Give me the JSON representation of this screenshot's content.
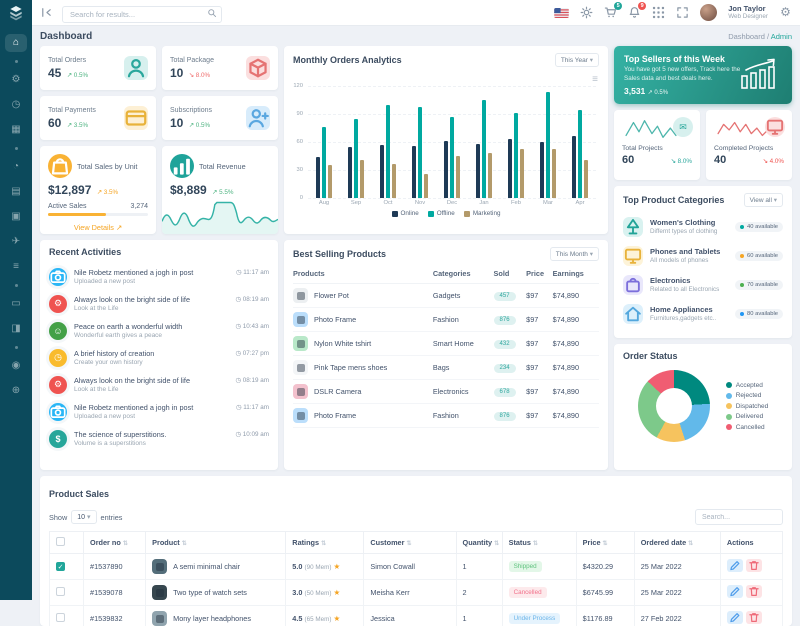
{
  "navbar": {
    "search_placeholder": "Search for results...",
    "cart_badge": "5",
    "bell_badge": "9",
    "user_name": "Jon Taylor",
    "user_role": "Web Designer"
  },
  "header": {
    "title": "Dashboard",
    "breadcrumb": {
      "main": "Dashboard",
      "sub": "Admin"
    }
  },
  "sidebar": {
    "items": [
      "home",
      "divider",
      "settings",
      "clock",
      "apps",
      "divider",
      "history",
      "gallery",
      "components",
      "send",
      "tables",
      "divider",
      "documents",
      "widgets",
      "divider",
      "location",
      "globe"
    ]
  },
  "stats": [
    {
      "label": "Total Orders",
      "value": "45",
      "delta": "0.5%",
      "dir": "up",
      "icon": "person",
      "icon_bg": "#d7f0ee",
      "icon_color": "#2aa79c"
    },
    {
      "label": "Total Package",
      "value": "10",
      "delta": "8.0%",
      "dir": "down",
      "icon": "box",
      "icon_bg": "#fbdfdf",
      "icon_color": "#e57373"
    },
    {
      "label": "Total Payments",
      "value": "60",
      "delta": "3.5%",
      "dir": "up",
      "icon": "card",
      "icon_bg": "#fdf0d5",
      "icon_color": "#e8b23a"
    },
    {
      "label": "Subscriptions",
      "value": "10",
      "delta": "0.5%",
      "dir": "up",
      "icon": "person-plus",
      "icon_bg": "#d8ecfb",
      "icon_color": "#5aa7e0"
    }
  ],
  "sales_unit": {
    "title": "Total Sales by Unit",
    "value": "$12,897",
    "delta": "3.5%",
    "active_label": "Active Sales",
    "active_value": "3,274",
    "link": "View Details ↗"
  },
  "revenue": {
    "title": "Total Revenue",
    "value": "$8,889",
    "delta": "5.5%"
  },
  "top_sellers": {
    "title": "Top Sellers of this Week",
    "desc": "You have got 5 new offers, Track here the Sales data and best deals here.",
    "value": "3,531",
    "delta": "0.5%"
  },
  "projects": [
    {
      "label": "Total Projects",
      "value": "60",
      "delta": "8.0%",
      "delta_color": "#2aa79c",
      "icon": "envelope",
      "icon_bg": "#d7f0ee",
      "icon_color": "#2aa79c",
      "line_color": "#4db6ac"
    },
    {
      "label": "Completed Projects",
      "value": "40",
      "delta": "4.0%",
      "delta_color": "#ef5350",
      "icon": "monitor",
      "icon_bg": "#fbdfdf",
      "icon_color": "#e57373",
      "line_color": "#e57373"
    }
  ],
  "categories": {
    "title": "Top Product Categories",
    "dropdown": "View all",
    "items": [
      {
        "name": "Women's Clothing",
        "desc": "Differnt types of clothing",
        "count": "40 available",
        "dot": "#00a9a0",
        "icon": "clothing",
        "icon_bg": "#d9f2f0",
        "icon_color": "#22a498"
      },
      {
        "name": "Phones and Tablets",
        "desc": "All models of phones",
        "count": "60 available",
        "dot": "#f5a524",
        "icon": "monitor",
        "icon_bg": "#fdf3d8",
        "icon_color": "#e8b23a"
      },
      {
        "name": "Electronics",
        "desc": "Related to all Electronics",
        "count": "70 available",
        "dot": "#4caf50",
        "icon": "bag",
        "icon_bg": "#e9e7fb",
        "icon_color": "#7c6fdb"
      },
      {
        "name": "Home Appliances",
        "desc": "Furnitures,gadgets etc..",
        "count": "80 available",
        "dot": "#2196f3",
        "icon": "home",
        "icon_bg": "#ddf0fb",
        "icon_color": "#53a7dd"
      }
    ]
  },
  "activities": {
    "title": "Recent Activities",
    "items": [
      {
        "title": "Nile Robetz mentioned a jogh in post",
        "sub": "Uploaded a new post",
        "time": "11:17 am",
        "color": "#29b6f6",
        "icon": "camera"
      },
      {
        "title": "Always look on the bright side of life",
        "sub": "Look at the Life",
        "time": "08:19 am",
        "color": "#ef5350",
        "icon": "gear"
      },
      {
        "title": "Peace on earth a wonderful width",
        "sub": "Wonderful earth gives a peace",
        "time": "10:43 am",
        "color": "#43a047",
        "icon": "smile"
      },
      {
        "title": "A brief history of creation",
        "sub": "Create your own history",
        "time": "07:27 pm",
        "color": "#f9bb2d",
        "icon": "clock"
      },
      {
        "title": "Always look on the bright side of life",
        "sub": "Look at the Life",
        "time": "08:19 am",
        "color": "#ef5350",
        "icon": "gear"
      },
      {
        "title": "Nile Robetz mentioned a jogh in post",
        "sub": "Uploaded a new post",
        "time": "11:17 am",
        "color": "#29b6f6",
        "icon": "camera"
      },
      {
        "title": "The science of superstitions.",
        "sub": "Volume is a superstitions",
        "time": "10:09 am",
        "color": "#26a69a",
        "icon": "dollar"
      }
    ]
  },
  "best_selling": {
    "title": "Best Selling Products",
    "dropdown": "This Month",
    "columns": [
      "Products",
      "Categories",
      "Sold",
      "Price",
      "Earnings"
    ],
    "rows": [
      {
        "product": "Flower Pot",
        "thumb": "#eceff1",
        "category": "Gadgets",
        "sold": "457",
        "price": "$97",
        "earnings": "$74,890"
      },
      {
        "product": "Photo Frame",
        "thumb": "#bbdefb",
        "category": "Fashion",
        "sold": "876",
        "price": "$97",
        "earnings": "$74,890"
      },
      {
        "product": "Nylon White tshirt",
        "thumb": "#b9e8c9",
        "category": "Smart Home",
        "sold": "432",
        "price": "$97",
        "earnings": "$74,890"
      },
      {
        "product": "Pink Tape mens shoes",
        "thumb": "#f3f5f7",
        "category": "Bags",
        "sold": "234",
        "price": "$97",
        "earnings": "$74,890"
      },
      {
        "product": "DSLR Camera",
        "thumb": "#f3c1cd",
        "category": "Electronics",
        "sold": "678",
        "price": "$97",
        "earnings": "$74,890"
      },
      {
        "product": "Photo Frame",
        "thumb": "#bbdefb",
        "category": "Fashion",
        "sold": "876",
        "price": "$97",
        "earnings": "$74,890"
      }
    ]
  },
  "chart_data": [
    {
      "type": "bar",
      "title": "Monthly Orders Analytics",
      "dropdown": "This Year",
      "categories": [
        "Aug",
        "Sep",
        "Oct",
        "Nov",
        "Dec",
        "Jan",
        "Feb",
        "Mar",
        "Apr"
      ],
      "series": [
        {
          "name": "Online",
          "color": "#1e3a56",
          "values": [
            44,
            55,
            57,
            56,
            61,
            58,
            63,
            60,
            66
          ]
        },
        {
          "name": "Offline",
          "color": "#00a9a0",
          "values": [
            76,
            85,
            100,
            97,
            87,
            105,
            91,
            114,
            94
          ]
        },
        {
          "name": "Marketing",
          "color": "#b39a6a",
          "values": [
            35,
            41,
            36,
            26,
            45,
            48,
            52,
            53,
            41
          ]
        }
      ],
      "ylim": [
        0,
        120
      ],
      "yticks": [
        0,
        30,
        60,
        90,
        120
      ],
      "grid": true,
      "legend_position": "bottom"
    },
    {
      "type": "pie",
      "title": "Order Status",
      "labels": [
        "Accepted",
        "Rejected",
        "Dispatched",
        "Delivered",
        "Cancelled"
      ],
      "values": [
        24,
        21,
        13,
        29,
        13
      ],
      "colors": [
        "#00897f",
        "#62b9ea",
        "#f6c35e",
        "#7dc98a",
        "#f05d72"
      ]
    }
  ],
  "product_sales": {
    "title": "Product Sales",
    "show_label": "Show",
    "entries_value": "10",
    "entries_label": "entries",
    "search_placeholder": "Search...",
    "columns": [
      "Order no",
      "Product",
      "Ratings",
      "Customer",
      "Quantity",
      "Status",
      "Price",
      "Ordered date",
      "Actions"
    ],
    "rows": [
      {
        "checked": true,
        "order": "#1537890",
        "product": "A semi minimal chair",
        "thumb": "#546e7a",
        "rating": "5.0",
        "rating_note": "(90 Mem)",
        "customer": "Simon Cowall",
        "qty": "1",
        "status": "Shipped",
        "status_type": "success",
        "price": "$4320.29",
        "date": "25 Mar 2022"
      },
      {
        "checked": false,
        "order": "#1539078",
        "product": "Two type of watch sets",
        "thumb": "#37474f",
        "rating": "3.0",
        "rating_note": "(50 Mem)",
        "customer": "Meisha Kerr",
        "qty": "2",
        "status": "Cancelled",
        "status_type": "danger",
        "price": "$6745.99",
        "date": "25 Mar 2022"
      },
      {
        "checked": false,
        "order": "#1539832",
        "product": "Mony layer headphones",
        "thumb": "#90a4ae",
        "rating": "4.5",
        "rating_note": "(65 Mem)",
        "customer": "Jessica",
        "qty": "1",
        "status": "Under Process",
        "status_type": "info",
        "price": "$1176.89",
        "date": "27 Feb 2022"
      }
    ]
  },
  "colors": {
    "accent": "#21a69a",
    "sidebar": "#0c4a5c",
    "warning": "#f5a524",
    "danger": "#ef5350",
    "success": "#4db380"
  }
}
